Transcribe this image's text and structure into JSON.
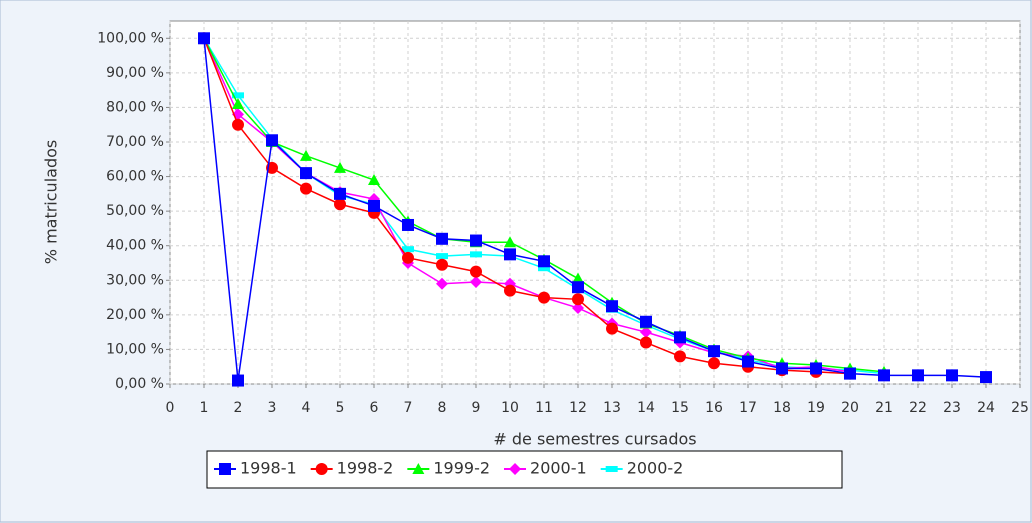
{
  "chart_data": {
    "type": "line",
    "xlabel": "# de semestres cursados",
    "ylabel": "% matriculados",
    "x": [
      1,
      2,
      3,
      4,
      5,
      6,
      7,
      8,
      9,
      10,
      11,
      12,
      13,
      14,
      15,
      16,
      17,
      18,
      19,
      20,
      21,
      22,
      23,
      24
    ],
    "series": [
      {
        "name": "1998-1",
        "color": "#0000ff",
        "marker": "square",
        "values": [
          100,
          1,
          70.5,
          61,
          55,
          51.5,
          46,
          42,
          41.5,
          37.5,
          35.5,
          28,
          22.5,
          18,
          13.5,
          9.5,
          6.5,
          4.5,
          4.5,
          3,
          2.5,
          2.5,
          2.5,
          2
        ]
      },
      {
        "name": "1998-2",
        "color": "#ff0000",
        "marker": "circle",
        "values": [
          100,
          75,
          62.5,
          56.5,
          52,
          49.5,
          36.5,
          34.5,
          32.5,
          27,
          25,
          24.5,
          16,
          12,
          8,
          6,
          5,
          4,
          3.5,
          3,
          null,
          null,
          null,
          null
        ]
      },
      {
        "name": "1999-2",
        "color": "#00ff00",
        "marker": "triangle",
        "values": [
          100,
          81,
          70,
          66,
          62.5,
          59,
          47,
          42,
          41,
          41,
          36,
          30.5,
          23.5,
          17.5,
          14,
          10,
          7.5,
          6,
          5.5,
          4.5,
          3.5,
          null,
          null,
          null
        ]
      },
      {
        "name": "2000-1",
        "color": "#ff00ff",
        "marker": "diamond",
        "values": [
          100,
          78,
          70,
          61,
          55.5,
          53.5,
          35,
          29,
          29.5,
          29,
          25,
          22,
          17.5,
          15,
          12,
          9,
          8,
          4.5,
          5,
          3.5,
          null,
          null,
          null,
          null
        ]
      },
      {
        "name": "2000-2",
        "color": "#00ffff",
        "marker": "rect",
        "values": [
          100,
          83.5,
          71,
          61,
          54.5,
          52,
          39,
          37,
          37.5,
          37,
          33.5,
          27.5,
          21.5,
          17,
          13,
          9.5,
          7,
          5,
          4.5,
          4,
          3,
          null,
          null,
          null
        ]
      }
    ],
    "xlim": [
      0,
      25
    ],
    "xticks": [
      0,
      1,
      2,
      3,
      4,
      5,
      6,
      7,
      8,
      9,
      10,
      11,
      12,
      13,
      14,
      15,
      16,
      17,
      18,
      19,
      20,
      21,
      22,
      23,
      24,
      25
    ],
    "ylim": [
      0,
      105
    ],
    "yticks": [
      {
        "value": 0,
        "label": "0,00 %"
      },
      {
        "value": 10,
        "label": "10,00 %"
      },
      {
        "value": 20,
        "label": "20,00 %"
      },
      {
        "value": 30,
        "label": "30,00 %"
      },
      {
        "value": 40,
        "label": "40,00 %"
      },
      {
        "value": 50,
        "label": "50,00 %"
      },
      {
        "value": 60,
        "label": "60,00 %"
      },
      {
        "value": 70,
        "label": "70,00 %"
      },
      {
        "value": 80,
        "label": "80,00 %"
      },
      {
        "value": 90,
        "label": "90,00 %"
      },
      {
        "value": 100,
        "label": "100,00 %"
      }
    ],
    "grid": true,
    "legend": "bottom"
  }
}
